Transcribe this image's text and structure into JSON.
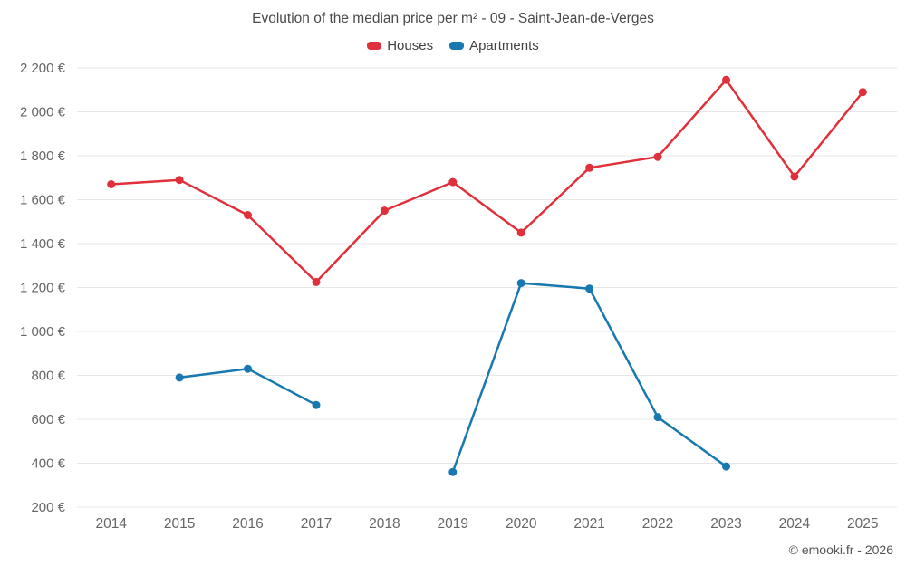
{
  "title": "Evolution of the median price per m² - 09 - Saint-Jean-de-Verges",
  "footer": "© emooki.fr - 2026",
  "legend": {
    "items": [
      {
        "label": "Houses",
        "color": "#e0303b"
      },
      {
        "label": "Apartments",
        "color": "#1878b0"
      }
    ]
  },
  "colors": {
    "grid": "#e7e7e7",
    "axis_text": "#666666",
    "title_text": "#4a4a4a"
  },
  "chart_data": {
    "type": "line",
    "title": "Evolution of the median price per m² - 09 - Saint-Jean-de-Verges",
    "categories": [
      "2014",
      "2015",
      "2016",
      "2017",
      "2018",
      "2019",
      "2020",
      "2021",
      "2022",
      "2023",
      "2024",
      "2025"
    ],
    "series": [
      {
        "name": "Houses",
        "color": "#e0303b",
        "values": [
          1670,
          1690,
          1530,
          1225,
          1550,
          1680,
          1450,
          1745,
          1795,
          2145,
          1705,
          2090
        ]
      },
      {
        "name": "Apartments",
        "color": "#1878b0",
        "values": [
          null,
          790,
          830,
          665,
          null,
          360,
          1220,
          1195,
          610,
          385,
          null,
          null
        ]
      }
    ],
    "xlabel": "",
    "ylabel": "",
    "ylim": [
      200,
      2200
    ],
    "ytick_step": 200,
    "ytick_suffix": " €",
    "grid": true,
    "legend_position": "top"
  }
}
